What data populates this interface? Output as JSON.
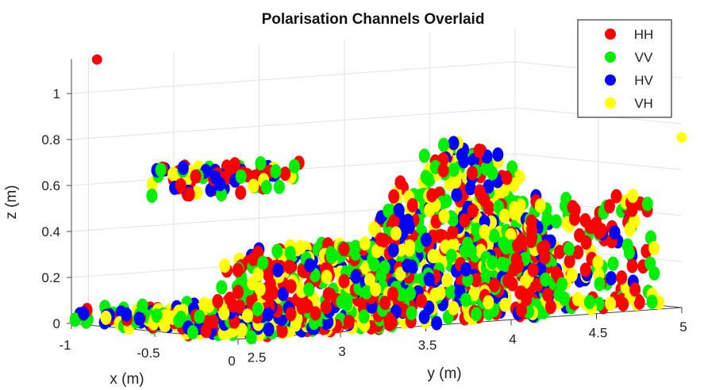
{
  "chart_data": {
    "type": "scatter",
    "projection": "3d",
    "title": "Polarisation Channels Overlaid",
    "xlabel": "x (m)",
    "ylabel": "y (m)",
    "zlabel": "z (m)",
    "xlim": [
      -1,
      0
    ],
    "ylim": [
      2.4,
      5
    ],
    "zlim": [
      0,
      1.15
    ],
    "xticks": [
      "-1",
      "-0.5",
      "0"
    ],
    "yticks": [
      "2.5",
      "3",
      "3.5",
      "4",
      "4.5",
      "5"
    ],
    "zticks": [
      "0",
      "0.2",
      "0.4",
      "0.6",
      "0.8",
      "1"
    ],
    "legend": {
      "position": "top-right",
      "entries": [
        "HH",
        "VV",
        "HV",
        "VH"
      ]
    },
    "series": [
      {
        "name": "HH",
        "color": "#ff0000"
      },
      {
        "name": "VV",
        "color": "#00ee00"
      },
      {
        "name": "HV",
        "color": "#0000ff"
      },
      {
        "name": "VH",
        "color": "#ffff00"
      }
    ],
    "clusters": [
      {
        "region": "ground",
        "x": [
          -1,
          0
        ],
        "y": [
          2.4,
          3.3
        ],
        "z": [
          0,
          0.07
        ],
        "count": 520,
        "series_weights": [
          0.2,
          0.2,
          0.3,
          0.3
        ]
      },
      {
        "region": "slope",
        "x": [
          -0.3,
          0
        ],
        "y": [
          2.55,
          3.5
        ],
        "z": [
          0.08,
          0.36
        ],
        "count": 300,
        "series_weights": [
          0.45,
          0.2,
          0.15,
          0.2
        ]
      },
      {
        "region": "main-mass",
        "x": [
          -0.2,
          0
        ],
        "y": [
          3.3,
          4.3
        ],
        "z": [
          0,
          0.78
        ],
        "count": 650,
        "series_weights": [
          0.28,
          0.27,
          0.22,
          0.23
        ]
      },
      {
        "region": "right",
        "x": [
          -0.15,
          0
        ],
        "y": [
          4.1,
          4.9
        ],
        "z": [
          0,
          0.5
        ],
        "count": 160,
        "series_weights": [
          0.35,
          0.3,
          0.15,
          0.2
        ]
      },
      {
        "region": "floating",
        "x": [
          -0.6,
          -0.4
        ],
        "y": [
          2.45,
          3.2
        ],
        "z": [
          0.58,
          0.7
        ],
        "count": 90,
        "series_weights": [
          0.4,
          0.25,
          0.2,
          0.15
        ]
      }
    ],
    "outliers": [
      {
        "series": "HH",
        "x": -1,
        "y": 2.55,
        "z": 1.14
      },
      {
        "series": "VH",
        "x": 0,
        "y": 5,
        "z": 0.74
      }
    ]
  }
}
